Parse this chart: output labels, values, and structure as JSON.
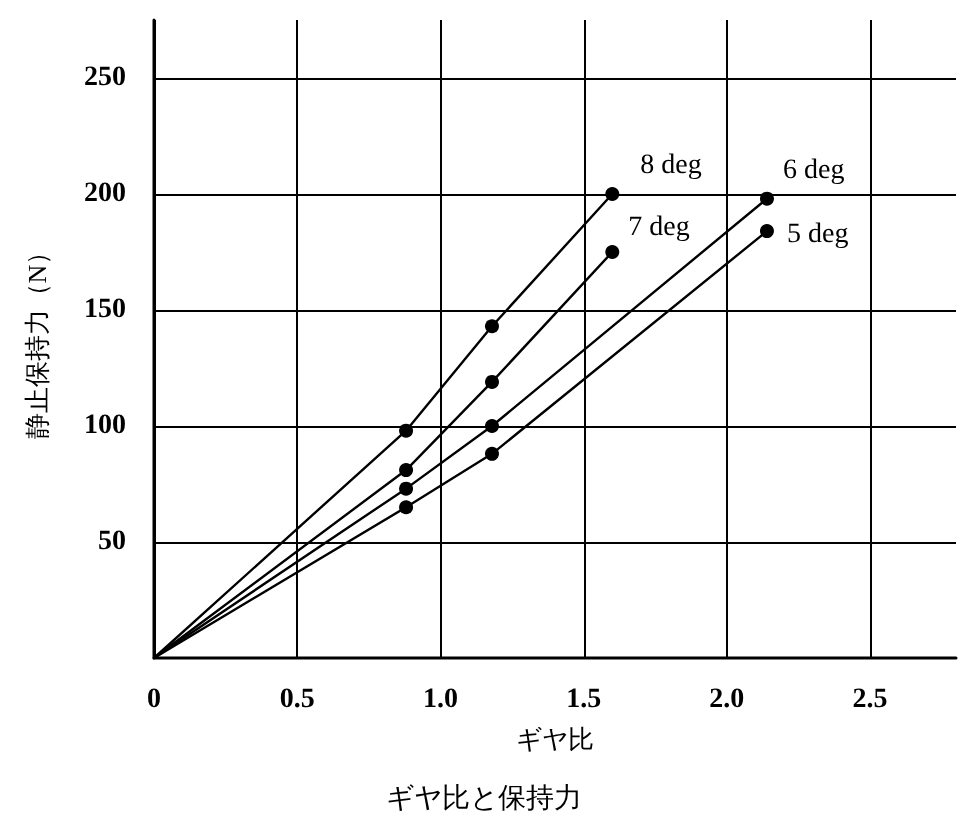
{
  "chart_data": {
    "type": "line",
    "title": "ギヤ比と保持力",
    "xlabel": "ギヤ比",
    "ylabel": "静止保持力（N）",
    "xlim": [
      0,
      2.8
    ],
    "xticks": [
      0,
      0.5,
      {
        "value": 1,
        "label": "1.0"
      },
      1.5,
      {
        "value": 2,
        "label": "2.0"
      },
      2.5
    ],
    "ylim": [
      0,
      275
    ],
    "yticks": [
      50,
      100,
      150,
      200,
      250
    ],
    "grid": true,
    "marker": "circle",
    "line_style": "solid",
    "series": [
      {
        "name": "8 deg",
        "color": "#000000",
        "x": [
          0,
          0.88,
          1.18,
          1.6
        ],
        "values": [
          0,
          98,
          143,
          200
        ]
      },
      {
        "name": "7 deg",
        "color": "#000000",
        "x": [
          0,
          0.88,
          1.18,
          1.6
        ],
        "values": [
          0,
          81,
          119,
          175
        ]
      },
      {
        "name": "6 deg",
        "color": "#000000",
        "x": [
          0,
          0.88,
          1.18,
          2.14
        ],
        "values": [
          0,
          73,
          100,
          198
        ]
      },
      {
        "name": "5 deg",
        "color": "#000000",
        "x": [
          0,
          0.88,
          1.18,
          2.14
        ],
        "values": [
          0,
          65,
          88,
          184
        ]
      }
    ]
  }
}
